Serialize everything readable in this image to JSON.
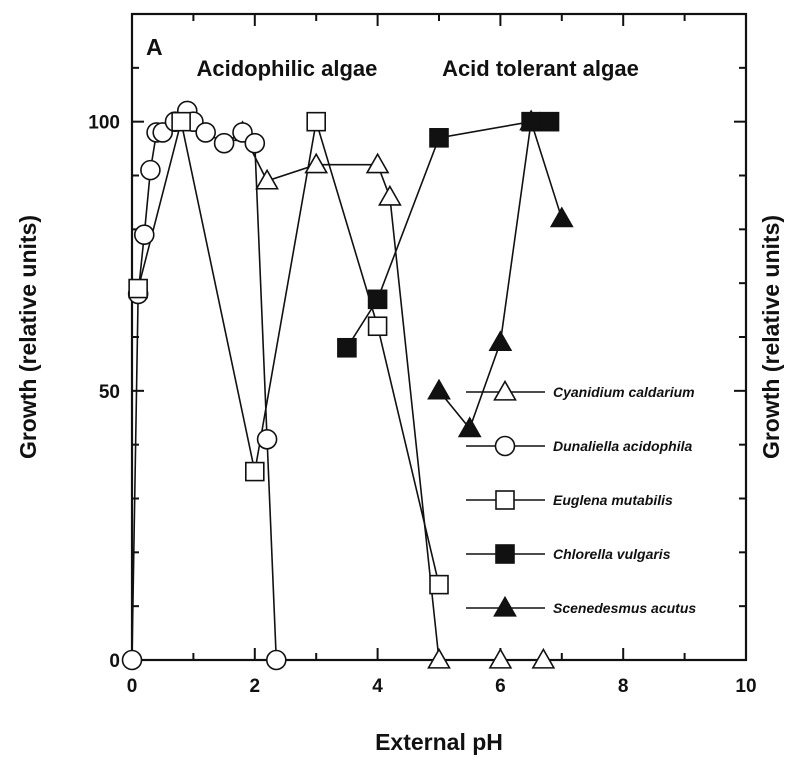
{
  "chart_data": {
    "type": "line",
    "panel_label": "A",
    "xlabel": "External pH",
    "ylabel_left": "Growth  (relative units)",
    "ylabel_right": "Growth  (relative units)",
    "xlim": [
      0,
      10
    ],
    "ylim": [
      0,
      120
    ],
    "x_ticks": [
      0,
      2,
      4,
      6,
      8,
      10
    ],
    "x_tick_labels": [
      "0",
      "2",
      "4",
      "6",
      "8",
      "10"
    ],
    "y_ticks": [
      0,
      50,
      100
    ],
    "y_tick_labels": [
      "0",
      "50",
      "100"
    ],
    "grid": false,
    "legend_position": "right",
    "annotations": [
      {
        "text": "Acidophilic algae",
        "x": 1.05,
        "y": 110
      },
      {
        "text": "Acid tolerant algae",
        "x": 5.05,
        "y": 110
      }
    ],
    "series": [
      {
        "name": "Cyanidium caldarium",
        "marker": "triangle-open",
        "points": [
          [
            1.8,
            98
          ],
          [
            2.2,
            89
          ],
          [
            3.0,
            92
          ],
          [
            4.0,
            92
          ],
          [
            4.2,
            86
          ],
          [
            5.0,
            0
          ],
          [
            6.0,
            0
          ],
          [
            6.7,
            0
          ]
        ]
      },
      {
        "name": "Dunaliella acidophila",
        "marker": "circle-open",
        "points": [
          [
            0.0,
            0
          ],
          [
            0.1,
            68
          ],
          [
            0.2,
            79
          ],
          [
            0.3,
            91
          ],
          [
            0.4,
            98
          ],
          [
            0.5,
            98
          ],
          [
            0.7,
            100
          ],
          [
            0.9,
            102
          ],
          [
            1.0,
            100
          ],
          [
            1.2,
            98
          ],
          [
            1.5,
            96
          ],
          [
            1.8,
            98
          ],
          [
            2.0,
            96
          ],
          [
            2.2,
            41
          ],
          [
            2.35,
            0
          ]
        ]
      },
      {
        "name": "Euglena mutabilis",
        "marker": "square-open",
        "points": [
          [
            0.1,
            69
          ],
          [
            0.8,
            100
          ],
          [
            2.0,
            35
          ],
          [
            3.0,
            100
          ],
          [
            4.0,
            62
          ],
          [
            5.0,
            14
          ]
        ]
      },
      {
        "name": "Chlorella vulgaris",
        "marker": "square-filled",
        "points": [
          [
            3.5,
            58
          ],
          [
            4.0,
            67
          ],
          [
            5.0,
            97
          ],
          [
            6.5,
            100
          ],
          [
            6.8,
            100
          ]
        ]
      },
      {
        "name": "Scenedesmus acutus",
        "marker": "triangle-filled",
        "points": [
          [
            5.0,
            50
          ],
          [
            5.5,
            43
          ],
          [
            6.0,
            59
          ],
          [
            6.5,
            100
          ],
          [
            7.0,
            82
          ]
        ]
      }
    ]
  }
}
